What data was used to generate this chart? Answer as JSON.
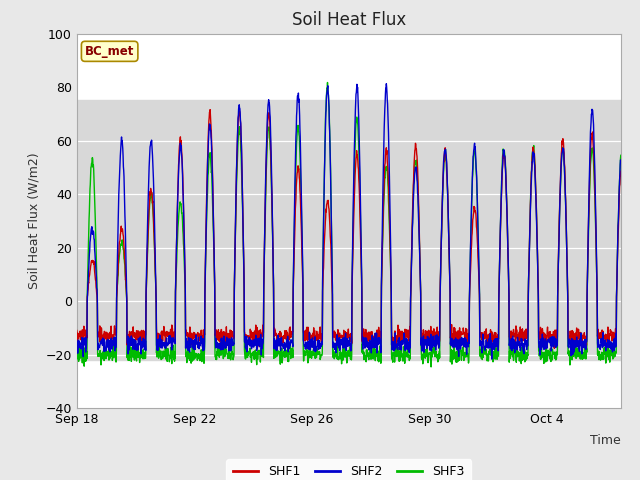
{
  "title": "Soil Heat Flux",
  "ylabel": "Soil Heat Flux (W/m2)",
  "xlabel": "Time",
  "ylim": [
    -40,
    100
  ],
  "yticks": [
    -40,
    -20,
    0,
    20,
    40,
    60,
    80,
    100
  ],
  "shaded_ymin": -22,
  "shaded_ymax": 75,
  "colors": {
    "SHF1": "#cc0000",
    "SHF2": "#0000cc",
    "SHF3": "#00bb00"
  },
  "legend_label": "BC_met",
  "legend_box_facecolor": "#ffffcc",
  "legend_box_edge": "#aa8800",
  "x_tick_labels": [
    "Sep 18",
    "Sep 22",
    "Sep 26",
    "Sep 30",
    "Oct 4"
  ],
  "x_tick_positions": [
    0,
    4,
    8,
    12,
    16
  ],
  "fig_facecolor": "#e8e8e8",
  "axes_facecolor": "#ffffff",
  "line_width": 1.0,
  "n_days": 18.5,
  "amp1": [
    15,
    27,
    42,
    60,
    70,
    72,
    70,
    50,
    38,
    55,
    56,
    58,
    56,
    35,
    55,
    57,
    60,
    63,
    50
  ],
  "amp2": [
    27,
    60,
    60,
    58,
    66,
    73,
    75,
    77,
    80,
    80,
    80,
    50,
    57,
    58,
    56,
    55,
    57,
    71,
    55
  ],
  "amp3": [
    53,
    22,
    40,
    37,
    55,
    64,
    65,
    65,
    81,
    68,
    50,
    53,
    55,
    56,
    57,
    57,
    57,
    57,
    55
  ],
  "night1": -13,
  "night2": -16,
  "night3": -20
}
